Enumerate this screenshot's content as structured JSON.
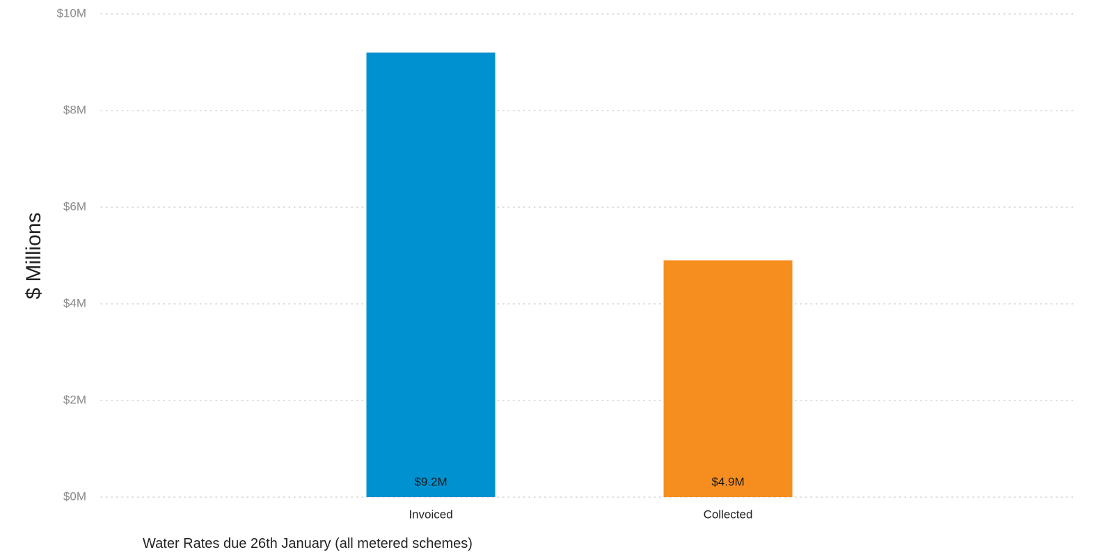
{
  "chart_data": {
    "type": "bar",
    "categories": [
      "Invoiced",
      "Collected"
    ],
    "values": [
      9.2,
      4.9
    ],
    "data_labels": [
      "$9.2M",
      "$4.9M"
    ],
    "bar_colors": [
      "#0091d0",
      "#f68e1f"
    ],
    "ylabel": "$ Millions",
    "xlabel": "Water Rates due 26th January (all metered schemes)",
    "ylim": [
      0,
      10
    ],
    "yticks": [
      0,
      2,
      4,
      6,
      8,
      10
    ],
    "ytick_labels": [
      "$0M",
      "$2M",
      "$4M",
      "$6M",
      "$8M",
      "$10M"
    ],
    "grid": true,
    "legend": "none"
  }
}
